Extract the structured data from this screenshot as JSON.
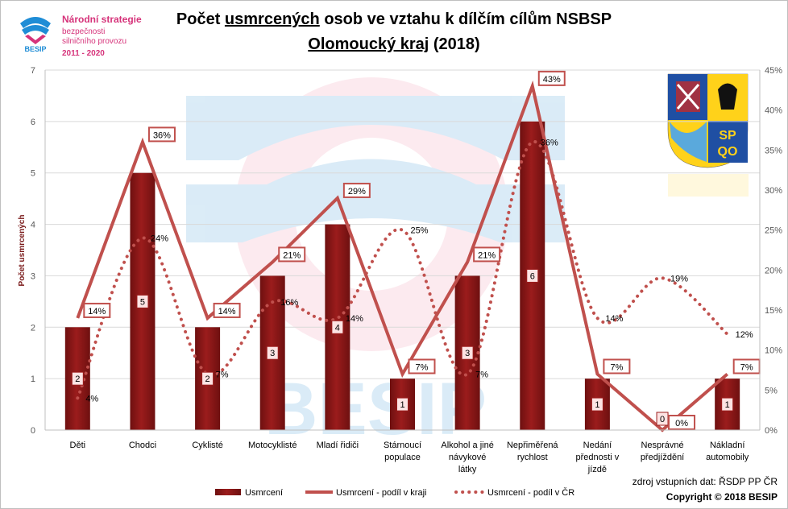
{
  "header": {
    "logo_text_1": "Národní strategie",
    "logo_text_2": "bezpečnosti",
    "logo_text_3": "silničního provozu",
    "logo_text_4": "2011 - 2020",
    "logo_brand": "BESIP",
    "title_part1": "Počet ",
    "title_underlined": "usmrcených",
    "title_part2": " osob ve vztahu k dílčím cílům NSBSP",
    "subtitle_underlined": "Olomoucký kraj",
    "subtitle_part2": " (2018)"
  },
  "watermark_text": "BESIP",
  "coat_of_arms_text": [
    "SP",
    "QO"
  ],
  "footer": {
    "source": "zdroj vstupních dat: ŘSDP PP ČR",
    "copyright": "Copyright © 2018  BESIP"
  },
  "colors": {
    "bar": "#9b1c1c",
    "line": "#c0504d",
    "brand_pink": "#d6337a",
    "brand_blue": "#1f8dd6"
  },
  "chart_data": {
    "type": "bar",
    "categories": [
      "Děti",
      "Chodci",
      "Cyklisté",
      "Motocyklisté",
      "Mladí řidiči",
      "Stárnoucí populace",
      "Alkohol a jiné návykové látky",
      "Nepřiměřená rychlost",
      "Nedání přednosti v jízdě",
      "Nesprávné předjíždění",
      "Nákladní automobily"
    ],
    "category_lines": [
      [
        "Děti"
      ],
      [
        "Chodci"
      ],
      [
        "Cyklisté"
      ],
      [
        "Motocyklisté"
      ],
      [
        "Mladí řidiči"
      ],
      [
        "Stárnoucí",
        "populace"
      ],
      [
        "Alkohol a jiné",
        "návykové",
        "látky"
      ],
      [
        "Nepřiměřená",
        "rychlost"
      ],
      [
        "Nedání",
        "přednosti v",
        "jízdě"
      ],
      [
        "Nesprávné",
        "předjíždění"
      ],
      [
        "Nákladní",
        "automobily"
      ]
    ],
    "series": [
      {
        "name": "Usmrcení",
        "type": "bar",
        "axis": "left",
        "values": [
          2,
          5,
          2,
          3,
          4,
          1,
          3,
          6,
          1,
          0,
          1
        ],
        "labels": [
          "2",
          "5",
          "2",
          "3",
          "4",
          "1",
          "3",
          "6",
          "1",
          "0",
          "1"
        ]
      },
      {
        "name": "Usmrcení - podíl v kraji",
        "type": "line",
        "axis": "right",
        "values": [
          14,
          36,
          14,
          21,
          29,
          7,
          21,
          43,
          7,
          0,
          7
        ],
        "labels": [
          "14%",
          "36%",
          "14%",
          "21%",
          "29%",
          "7%",
          "21%",
          "43%",
          "7%",
          "0%",
          "7%"
        ]
      },
      {
        "name": "Usmrcení - podíl v ČR",
        "type": "line-dotted",
        "axis": "right",
        "values": [
          4,
          24,
          7,
          16,
          14,
          25,
          7,
          36,
          14,
          19,
          12
        ],
        "labels": [
          "4%",
          "24%",
          "7%",
          "16%",
          "14%",
          "25%",
          "7%",
          "36%",
          "14%",
          "19%",
          "12%"
        ]
      }
    ],
    "y_left": {
      "label": "Počet usmrcených",
      "min": 0,
      "max": 7,
      "ticks": [
        "0",
        "1",
        "2",
        "3",
        "4",
        "5",
        "6",
        "7"
      ]
    },
    "y_right": {
      "min": 0,
      "max": 45,
      "ticks": [
        "0%",
        "5%",
        "10%",
        "15%",
        "20%",
        "25%",
        "30%",
        "35%",
        "40%",
        "45%"
      ]
    },
    "grid": true,
    "legend_position": "bottom"
  }
}
